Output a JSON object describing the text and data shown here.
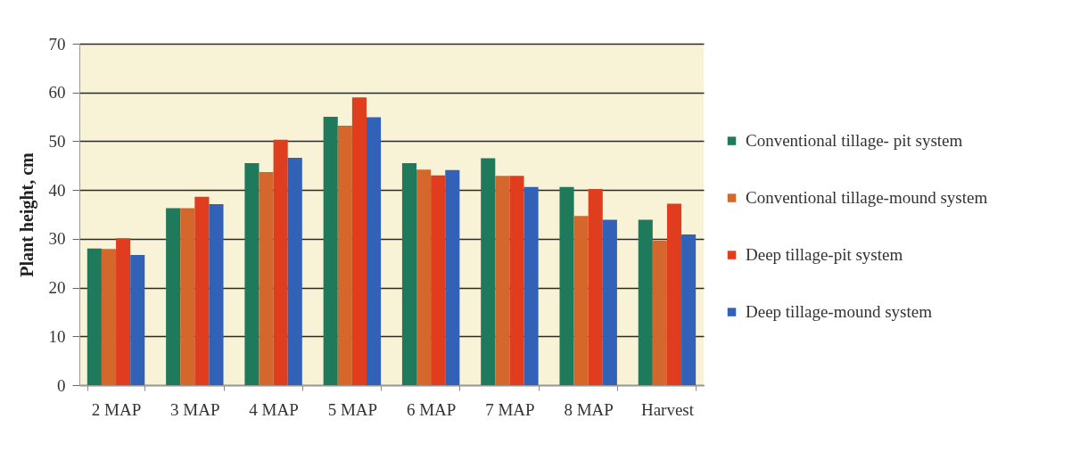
{
  "chart_data": {
    "type": "bar",
    "ylabel": "Plant height, cm",
    "categories": [
      "2 MAP",
      "3 MAP",
      "4 MAP",
      "5 MAP",
      "6 MAP",
      "7 MAP",
      "8 MAP",
      "Harvest"
    ],
    "series": [
      {
        "name": "Conventional tillage- pit system",
        "color": "#1f7a5c",
        "values": [
          28.0,
          36.3,
          45.5,
          55.0,
          45.5,
          46.5,
          40.6,
          33.9
        ]
      },
      {
        "name": "Conventional tillage-mound system",
        "color": "#d4682c",
        "values": [
          27.9,
          36.3,
          43.7,
          53.2,
          44.2,
          42.9,
          34.7,
          29.6
        ]
      },
      {
        "name": "Deep tillage-pit system",
        "color": "#e03c1e",
        "values": [
          30.1,
          38.6,
          50.3,
          59.0,
          43.0,
          42.9,
          40.2,
          37.2
        ]
      },
      {
        "name": "Deep tillage-mound system",
        "color": "#3262b8",
        "values": [
          26.7,
          37.1,
          46.6,
          54.9,
          44.1,
          40.6,
          33.9,
          30.9
        ]
      }
    ],
    "ylim": [
      0,
      70
    ],
    "yticks": [
      0,
      10,
      20,
      30,
      40,
      50,
      60,
      70
    ],
    "grid": "y",
    "legend": "right"
  }
}
